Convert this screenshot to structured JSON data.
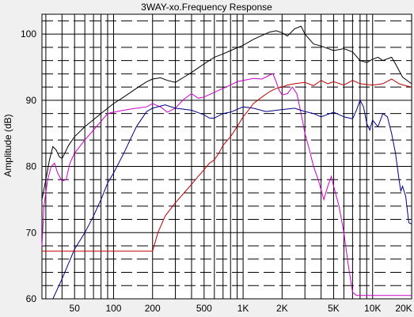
{
  "chart_data": {
    "type": "line",
    "title": "3WAY-xo.Frequency Response",
    "xlabel": "",
    "ylabel": "Amplitude (dB)",
    "x_scale": "log",
    "xlim": [
      28,
      20000
    ],
    "ylim": [
      60,
      103
    ],
    "x_ticks": [
      {
        "value": 50,
        "label": "50"
      },
      {
        "value": 100,
        "label": "100"
      },
      {
        "value": 200,
        "label": "200"
      },
      {
        "value": 500,
        "label": "500"
      },
      {
        "value": 1000,
        "label": "1K"
      },
      {
        "value": 2000,
        "label": "2K"
      },
      {
        "value": 5000,
        "label": "5K"
      },
      {
        "value": 10000,
        "label": "10K"
      },
      {
        "value": 20000,
        "label": "20K"
      }
    ],
    "y_ticks": [
      {
        "value": 60,
        "label": "60"
      },
      {
        "value": 70,
        "label": "70"
      },
      {
        "value": 80,
        "label": "80"
      },
      {
        "value": 90,
        "label": "90"
      },
      {
        "value": 100,
        "label": "100"
      }
    ],
    "grid": true,
    "series": [
      {
        "color": "#000000",
        "points": [
          [
            28,
            75
          ],
          [
            30,
            78
          ],
          [
            32,
            81
          ],
          [
            34,
            83
          ],
          [
            36,
            82.5
          ],
          [
            38,
            81.5
          ],
          [
            40,
            81.2
          ],
          [
            42,
            82
          ],
          [
            45,
            83.2
          ],
          [
            50,
            84.5
          ],
          [
            60,
            86
          ],
          [
            80,
            88
          ],
          [
            100,
            89.5
          ],
          [
            120,
            90.5
          ],
          [
            150,
            91.8
          ],
          [
            180,
            92.8
          ],
          [
            200,
            93.2
          ],
          [
            230,
            93.4
          ],
          [
            260,
            93
          ],
          [
            300,
            92.7
          ],
          [
            350,
            93.5
          ],
          [
            400,
            94.2
          ],
          [
            500,
            95.5
          ],
          [
            600,
            96.5
          ],
          [
            700,
            97
          ],
          [
            800,
            97.5
          ],
          [
            1000,
            98.3
          ],
          [
            1200,
            99.2
          ],
          [
            1400,
            99.8
          ],
          [
            1600,
            100.3
          ],
          [
            1800,
            100.5
          ],
          [
            2000,
            100.2
          ],
          [
            2200,
            99.7
          ],
          [
            2500,
            100.8
          ],
          [
            2800,
            101.2
          ],
          [
            3000,
            100
          ],
          [
            3500,
            98.5
          ],
          [
            4000,
            98.2
          ],
          [
            5000,
            97.5
          ],
          [
            6000,
            97.8
          ],
          [
            7000,
            97.3
          ],
          [
            8000,
            96
          ],
          [
            9000,
            95.7
          ],
          [
            10000,
            96.2
          ],
          [
            11000,
            96.5
          ],
          [
            12000,
            96
          ],
          [
            14000,
            96.5
          ],
          [
            15000,
            95.5
          ],
          [
            17000,
            93.5
          ],
          [
            19000,
            92.8
          ],
          [
            20000,
            92.5
          ]
        ]
      },
      {
        "color": "#cc00cc",
        "points": [
          [
            28,
            68
          ],
          [
            29,
            74
          ],
          [
            31,
            78
          ],
          [
            33,
            80
          ],
          [
            35,
            80.5
          ],
          [
            37,
            79
          ],
          [
            40,
            77.8
          ],
          [
            43,
            78
          ],
          [
            46,
            80.5
          ],
          [
            50,
            82
          ],
          [
            60,
            84
          ],
          [
            70,
            85.5
          ],
          [
            80,
            86.8
          ],
          [
            90,
            88
          ],
          [
            100,
            88.2
          ],
          [
            120,
            88.5
          ],
          [
            150,
            88.8
          ],
          [
            180,
            89
          ],
          [
            200,
            89.5
          ],
          [
            230,
            89
          ],
          [
            260,
            88.2
          ],
          [
            300,
            88.8
          ],
          [
            350,
            90.2
          ],
          [
            400,
            91
          ],
          [
            450,
            90.3
          ],
          [
            500,
            90.5
          ],
          [
            600,
            91.2
          ],
          [
            700,
            91.8
          ],
          [
            800,
            92.3
          ],
          [
            900,
            92.8
          ],
          [
            1000,
            93
          ],
          [
            1200,
            93.3
          ],
          [
            1400,
            93.2
          ],
          [
            1600,
            93.8
          ],
          [
            1700,
            94
          ],
          [
            1800,
            92.8
          ],
          [
            1900,
            91.5
          ],
          [
            2000,
            90.8
          ],
          [
            2200,
            91
          ],
          [
            2400,
            92
          ],
          [
            2600,
            91
          ],
          [
            2800,
            88
          ],
          [
            3000,
            85
          ],
          [
            3200,
            83
          ],
          [
            3500,
            80
          ],
          [
            3800,
            78
          ],
          [
            4200,
            75
          ],
          [
            4500,
            77
          ],
          [
            4800,
            78.5
          ],
          [
            5000,
            77
          ],
          [
            5500,
            74
          ],
          [
            6000,
            70
          ],
          [
            6500,
            65
          ],
          [
            7000,
            61
          ],
          [
            7500,
            60.5
          ],
          [
            10000,
            60.5
          ],
          [
            20000,
            60.5
          ]
        ]
      },
      {
        "color": "#00008b",
        "points": [
          [
            34,
            60
          ],
          [
            40,
            63
          ],
          [
            50,
            67.5
          ],
          [
            60,
            70
          ],
          [
            70,
            72.5
          ],
          [
            80,
            75
          ],
          [
            90,
            77.5
          ],
          [
            100,
            79
          ],
          [
            120,
            82
          ],
          [
            150,
            86
          ],
          [
            180,
            88.3
          ],
          [
            200,
            88.8
          ],
          [
            250,
            89.3
          ],
          [
            300,
            88.8
          ],
          [
            400,
            88.5
          ],
          [
            500,
            87.8
          ],
          [
            550,
            87.3
          ],
          [
            600,
            87.3
          ],
          [
            700,
            88
          ],
          [
            800,
            88.2
          ],
          [
            1000,
            89
          ],
          [
            1200,
            88.8
          ],
          [
            1500,
            88.3
          ],
          [
            2000,
            88.6
          ],
          [
            2500,
            88.8
          ],
          [
            3000,
            88.3
          ],
          [
            3500,
            88
          ],
          [
            4000,
            87.5
          ],
          [
            5000,
            88.2
          ],
          [
            6000,
            87.5
          ],
          [
            7000,
            87.2
          ],
          [
            7500,
            88.5
          ],
          [
            8000,
            90
          ],
          [
            8500,
            89
          ],
          [
            9000,
            86.5
          ],
          [
            9500,
            85.5
          ],
          [
            10000,
            87
          ],
          [
            11000,
            86
          ],
          [
            12000,
            88
          ],
          [
            13000,
            87.5
          ],
          [
            14000,
            85
          ],
          [
            15000,
            82
          ],
          [
            16000,
            78
          ],
          [
            16500,
            76.3
          ],
          [
            17000,
            77
          ],
          [
            18000,
            75.5
          ],
          [
            19000,
            71.5
          ],
          [
            20000,
            71.3
          ]
        ]
      },
      {
        "color": "#c00000",
        "points": [
          [
            28,
            67.2
          ],
          [
            200,
            67.2
          ],
          [
            220,
            70
          ],
          [
            250,
            72.5
          ],
          [
            300,
            74.5
          ],
          [
            350,
            76
          ],
          [
            400,
            77.3
          ],
          [
            450,
            78.5
          ],
          [
            500,
            79.5
          ],
          [
            550,
            80.5
          ],
          [
            600,
            81
          ],
          [
            650,
            82
          ],
          [
            700,
            83.2
          ],
          [
            800,
            84.5
          ],
          [
            900,
            86
          ],
          [
            1000,
            87.5
          ],
          [
            1100,
            88.5
          ],
          [
            1200,
            89.5
          ],
          [
            1400,
            90.5
          ],
          [
            1600,
            91.3
          ],
          [
            1800,
            91.8
          ],
          [
            2000,
            92
          ],
          [
            2200,
            92.3
          ],
          [
            2500,
            92.5
          ],
          [
            3000,
            92.7
          ],
          [
            3500,
            92.2
          ],
          [
            4000,
            93
          ],
          [
            4500,
            92.5
          ],
          [
            5000,
            92.8
          ],
          [
            6000,
            92.3
          ],
          [
            7000,
            93
          ],
          [
            8000,
            92.5
          ],
          [
            10000,
            92.3
          ],
          [
            12000,
            92.5
          ],
          [
            14000,
            93.2
          ],
          [
            16000,
            92.5
          ],
          [
            18000,
            92.2
          ],
          [
            20000,
            92
          ]
        ]
      }
    ]
  }
}
